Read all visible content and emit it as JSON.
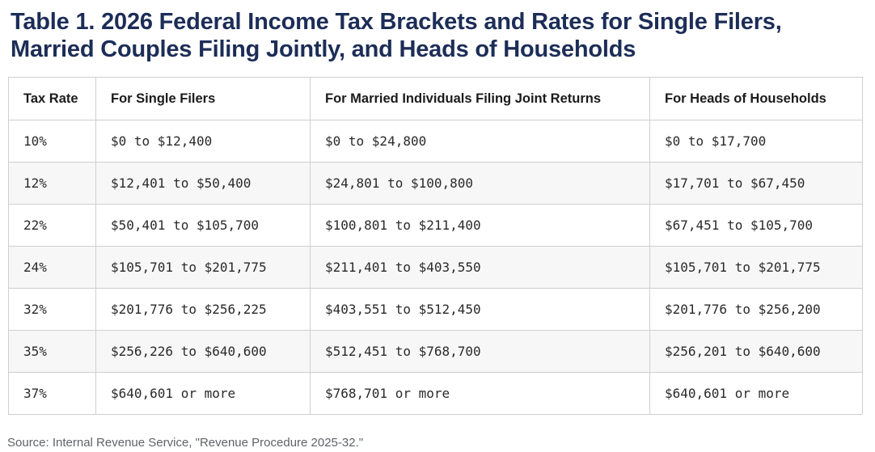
{
  "chart_data": {
    "type": "table",
    "title": "Table 1. 2026 Federal Income Tax Brackets and Rates for Single Filers, Married Couples Filing Jointly, and Heads of Households",
    "columns": [
      "Tax Rate",
      "For Single Filers",
      "For Married Individuals Filing Joint Returns",
      "For Heads of Households"
    ],
    "rows": [
      [
        "10%",
        "$0 to $12,400",
        "$0 to $24,800",
        "$0 to $17,700"
      ],
      [
        "12%",
        "$12,401 to $50,400",
        "$24,801 to $100,800",
        "$17,701 to $67,450"
      ],
      [
        "22%",
        "$50,401 to $105,700",
        "$100,801 to $211,400",
        "$67,451 to $105,700"
      ],
      [
        "24%",
        "$105,701 to $201,775",
        "$211,401 to $403,550",
        "$105,701 to $201,775"
      ],
      [
        "32%",
        "$201,776 to $256,225",
        "$403,551 to $512,450",
        "$201,776 to $256,200"
      ],
      [
        "35%",
        "$256,226 to $640,600",
        "$512,451 to $768,700",
        "$256,201 to $640,600"
      ],
      [
        "37%",
        "$640,601 or more",
        "$768,701 or more",
        "$640,601 or more"
      ]
    ],
    "source": "Source: Internal Revenue Service, \"Revenue Procedure 2025-32.\"",
    "layout": {
      "alt_row_shading": true,
      "grid": true
    }
  },
  "colors": {
    "title_navy": "#1c2d57",
    "header_text": "#1b1b1b",
    "cell_text": "#2a2a2a",
    "border": "#cfcfcf",
    "alt_row_bg": "#f7f7f7",
    "source_text": "#5f6368",
    "background": "#ffffff"
  }
}
